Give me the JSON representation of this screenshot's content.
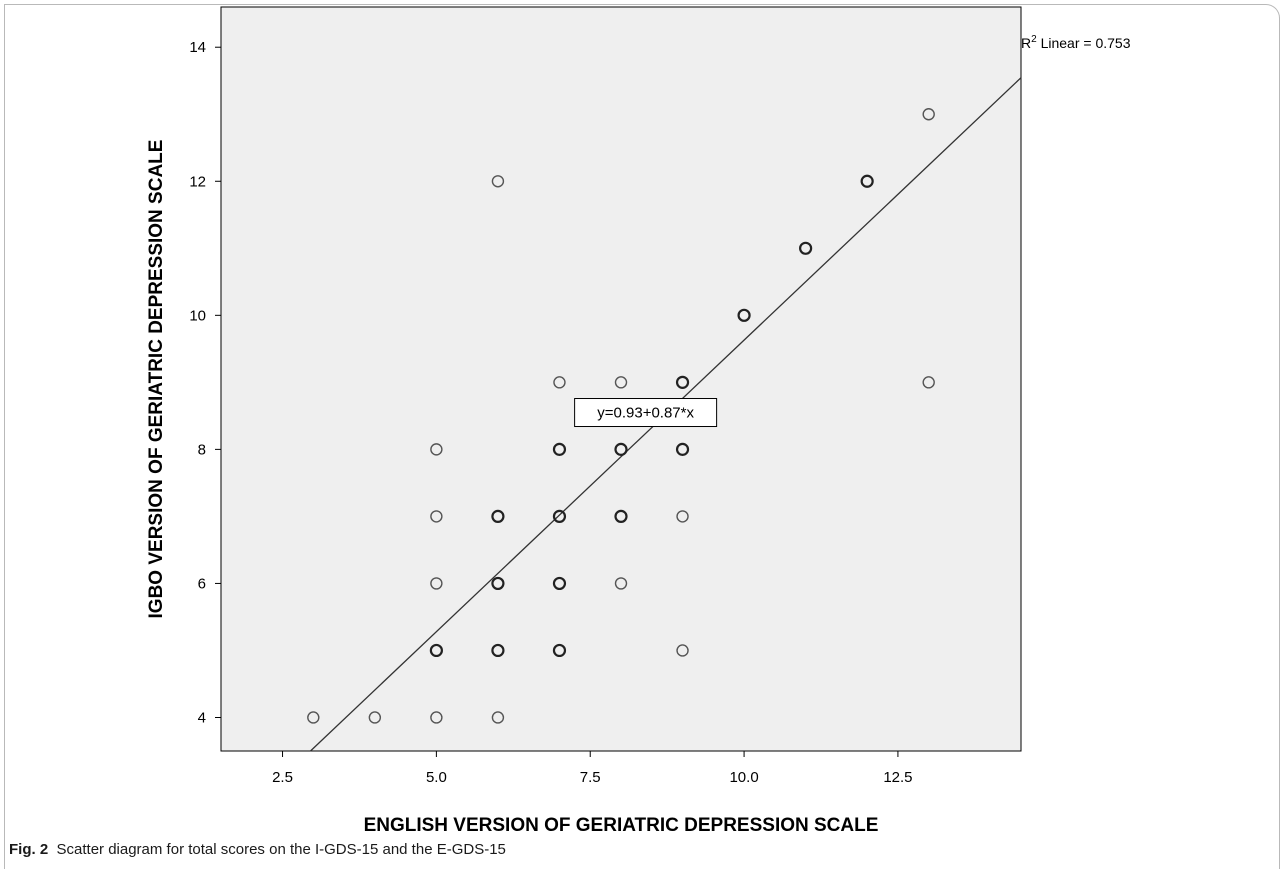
{
  "caption": {
    "label": "Fig. 2",
    "text": "Scatter diagram for total scores on the I-GDS-15 and the E-GDS-15"
  },
  "chart_data": {
    "type": "scatter",
    "xlabel": "ENGLISH VERSION OF GERIATRIC DEPRESSION SCALE",
    "ylabel": "IGBO VERSION OF GERIATRIC DEPRESSION SCALE",
    "xlim": [
      1.5,
      14.5
    ],
    "ylim": [
      3.5,
      14.6
    ],
    "x_ticks": [
      2.5,
      5.0,
      7.5,
      10.0,
      12.5
    ],
    "x_tick_labels": [
      "2.5",
      "5.0",
      "7.5",
      "10.0",
      "12.5"
    ],
    "y_ticks": [
      4,
      6,
      8,
      10,
      12,
      14
    ],
    "y_tick_labels": [
      "4",
      "6",
      "8",
      "10",
      "12",
      "14"
    ],
    "plot_background": "#efefef",
    "points": [
      {
        "x": 3,
        "y": 4,
        "bold": false
      },
      {
        "x": 4,
        "y": 4,
        "bold": false
      },
      {
        "x": 5,
        "y": 4,
        "bold": false
      },
      {
        "x": 6,
        "y": 4,
        "bold": false
      },
      {
        "x": 5,
        "y": 5,
        "bold": true
      },
      {
        "x": 6,
        "y": 5,
        "bold": true
      },
      {
        "x": 7,
        "y": 5,
        "bold": true
      },
      {
        "x": 9,
        "y": 5,
        "bold": false
      },
      {
        "x": 5,
        "y": 6,
        "bold": false
      },
      {
        "x": 6,
        "y": 6,
        "bold": true
      },
      {
        "x": 7,
        "y": 6,
        "bold": true
      },
      {
        "x": 8,
        "y": 6,
        "bold": false
      },
      {
        "x": 5,
        "y": 7,
        "bold": false
      },
      {
        "x": 6,
        "y": 7,
        "bold": true
      },
      {
        "x": 7,
        "y": 7,
        "bold": true
      },
      {
        "x": 8,
        "y": 7,
        "bold": true
      },
      {
        "x": 9,
        "y": 7,
        "bold": false
      },
      {
        "x": 5,
        "y": 8,
        "bold": false
      },
      {
        "x": 7,
        "y": 8,
        "bold": true
      },
      {
        "x": 8,
        "y": 8,
        "bold": true
      },
      {
        "x": 9,
        "y": 8,
        "bold": true
      },
      {
        "x": 7,
        "y": 9,
        "bold": false
      },
      {
        "x": 8,
        "y": 9,
        "bold": false
      },
      {
        "x": 9,
        "y": 9,
        "bold": true
      },
      {
        "x": 13,
        "y": 9,
        "bold": false
      },
      {
        "x": 10,
        "y": 10,
        "bold": true
      },
      {
        "x": 11,
        "y": 11,
        "bold": true
      },
      {
        "x": 6,
        "y": 12,
        "bold": false
      },
      {
        "x": 12,
        "y": 12,
        "bold": true
      },
      {
        "x": 13,
        "y": 13,
        "bold": false
      }
    ],
    "fit_line": {
      "intercept": 0.93,
      "slope": 0.87,
      "label": "y=0.93+0.87*x",
      "label_at": {
        "x": 8.4,
        "y": 8.55
      }
    },
    "r2_label": {
      "prefix": "R",
      "sup": "2",
      "suffix": " Linear = 0.753"
    }
  }
}
